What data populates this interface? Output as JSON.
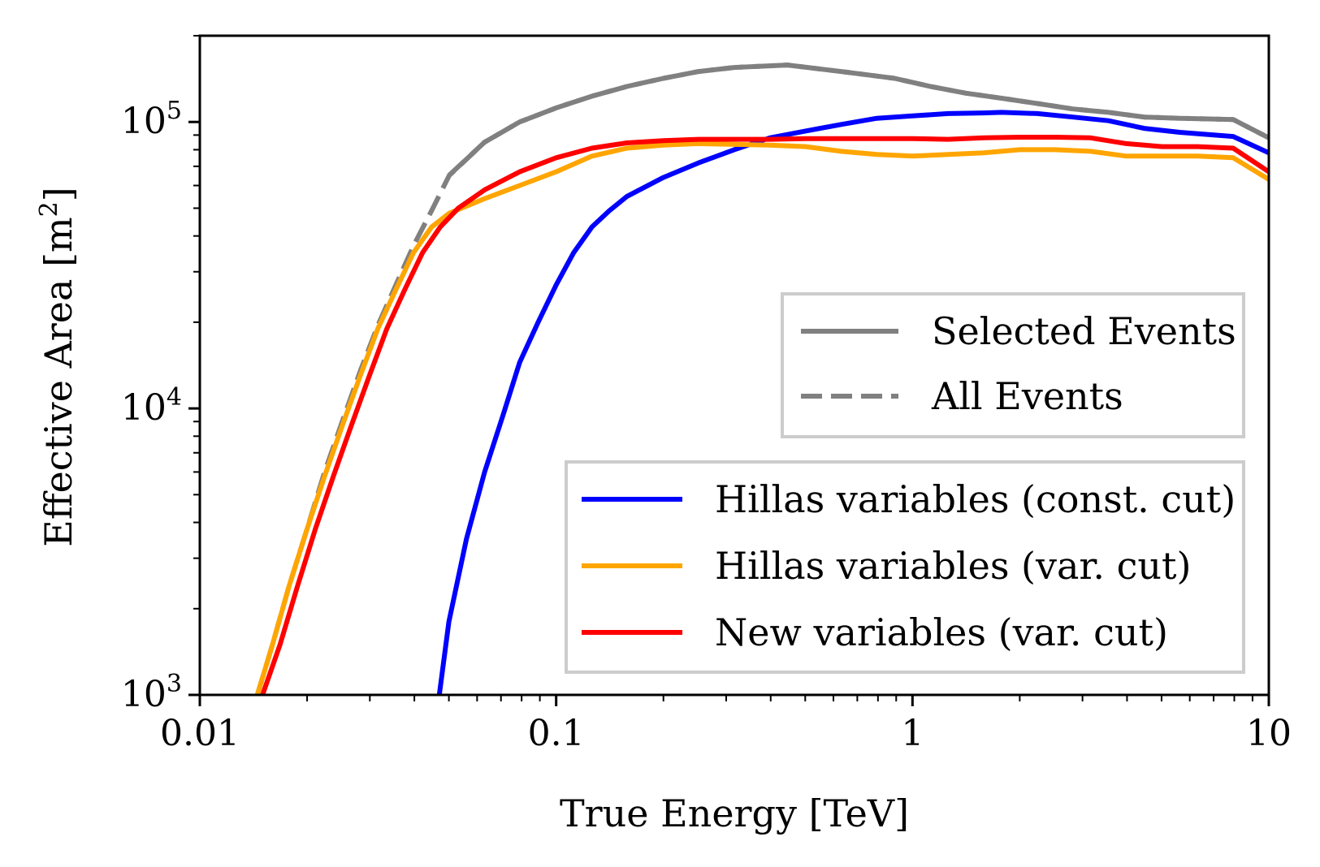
{
  "chart_data": {
    "type": "line",
    "xlabel": "True Energy [TeV]",
    "ylabel": "Effective Area [m",
    "ylabel_sup": "2",
    "ylabel_end": "]",
    "xscale": "log",
    "yscale": "log",
    "xlim": [
      0.01,
      10
    ],
    "ylim": [
      1000,
      200000
    ],
    "x_ticks": [
      {
        "value": 0.01,
        "label": "0.01"
      },
      {
        "value": 0.1,
        "label": "0.1"
      },
      {
        "value": 1,
        "label": "1"
      },
      {
        "value": 10,
        "label": "10"
      }
    ],
    "y_ticks": [
      {
        "value": 1000,
        "base": "10",
        "exp": "3"
      },
      {
        "value": 10000,
        "base": "10",
        "exp": "4"
      },
      {
        "value": 100000,
        "base": "10",
        "exp": "5"
      }
    ],
    "style_legend": [
      {
        "label": "Selected Events",
        "dash": "solid",
        "color": "#808080"
      },
      {
        "label": "All Events",
        "dash": "dashed",
        "color": "#808080"
      }
    ],
    "series": [
      {
        "name": "All Events (Hillas variables (const. cut))",
        "color": "#808080",
        "dash": "dashed",
        "legend": false,
        "x": [
          0.05,
          0.063,
          0.079,
          0.1,
          0.126,
          0.158,
          0.2,
          0.251,
          0.316,
          0.446,
          0.631,
          0.891,
          1.122,
          1.413,
          1.778,
          2.239,
          2.818,
          3.548,
          4.467,
          5.623,
          7.943,
          10
        ],
        "y": [
          65000,
          85000,
          100000,
          112000,
          123000,
          133000,
          142000,
          150000,
          155000,
          158000,
          150000,
          142000,
          133000,
          126000,
          121000,
          116000,
          111000,
          108000,
          104000,
          103000,
          102000,
          88000
        ]
      },
      {
        "name": "All Events (var. cut)",
        "color": "#808080",
        "dash": "dashed",
        "legend": false,
        "x": [
          0.0145,
          0.016,
          0.0178,
          0.02,
          0.0224,
          0.0251,
          0.0282,
          0.0316,
          0.0355,
          0.0398,
          0.0447,
          0.0501,
          0.063,
          0.079,
          0.1,
          0.126,
          0.158,
          0.2,
          0.251,
          0.316,
          0.446,
          0.631,
          0.891,
          1.122,
          1.413,
          1.778,
          2.239,
          2.818,
          3.548,
          4.467,
          5.623,
          7.943,
          10
        ],
        "y": [
          1000,
          1500,
          2400,
          3800,
          6000,
          9000,
          13500,
          19500,
          27000,
          37000,
          49000,
          65000,
          85000,
          100000,
          112000,
          123000,
          133000,
          142000,
          150000,
          155000,
          158000,
          150000,
          142000,
          133000,
          126000,
          121000,
          116000,
          111000,
          108000,
          104000,
          103000,
          102000,
          88000
        ]
      },
      {
        "name": "Hillas variables (const. cut)",
        "color": "#0000ff",
        "dash": "solid",
        "legend": true,
        "x": [
          0.047,
          0.05,
          0.056,
          0.063,
          0.071,
          0.079,
          0.089,
          0.1,
          0.112,
          0.126,
          0.141,
          0.158,
          0.2,
          0.251,
          0.316,
          0.398,
          0.501,
          0.631,
          0.794,
          1.0,
          1.259,
          1.585,
          1.778,
          2.239,
          2.818,
          3.548,
          4.467,
          5.623,
          7.943,
          10
        ],
        "y": [
          1000,
          1800,
          3500,
          6000,
          9500,
          14500,
          20000,
          27000,
          35000,
          43000,
          49000,
          55000,
          64000,
          72000,
          80000,
          88000,
          93000,
          98000,
          103000,
          105000,
          107000,
          107500,
          108000,
          107000,
          104000,
          101000,
          95000,
          92000,
          89000,
          78000
        ]
      },
      {
        "name": "Hillas variables (var. cut)",
        "color": "#ffa500",
        "dash": "solid",
        "legend": true,
        "x": [
          0.0145,
          0.016,
          0.0178,
          0.02,
          0.0224,
          0.0251,
          0.0282,
          0.0316,
          0.0355,
          0.0398,
          0.0447,
          0.0501,
          0.063,
          0.079,
          0.1,
          0.126,
          0.158,
          0.2,
          0.251,
          0.316,
          0.398,
          0.501,
          0.631,
          0.794,
          1.0,
          1.259,
          1.585,
          2.0,
          2.512,
          3.162,
          3.981,
          5.012,
          6.31,
          7.943,
          10
        ],
        "y": [
          1000,
          1500,
          2400,
          3800,
          5800,
          8700,
          13000,
          19000,
          26000,
          35000,
          43000,
          48000,
          54000,
          60000,
          67000,
          76000,
          81000,
          83000,
          84000,
          83500,
          83000,
          82000,
          79000,
          77000,
          76000,
          77000,
          78000,
          80000,
          80000,
          79000,
          76000,
          76000,
          76000,
          75000,
          63000
        ]
      },
      {
        "name": "New variables (var. cut)",
        "color": "#ff0000",
        "dash": "solid",
        "legend": true,
        "x": [
          0.015,
          0.0168,
          0.0188,
          0.0211,
          0.0237,
          0.0266,
          0.0299,
          0.0335,
          0.0376,
          0.0422,
          0.0473,
          0.0531,
          0.0631,
          0.079,
          0.1,
          0.126,
          0.158,
          0.2,
          0.251,
          0.316,
          0.398,
          0.501,
          0.631,
          0.794,
          1.0,
          1.259,
          1.585,
          2.0,
          2.512,
          3.162,
          3.981,
          5.012,
          6.31,
          7.943,
          10
        ],
        "y": [
          1000,
          1500,
          2400,
          3800,
          5800,
          8700,
          13000,
          19000,
          26000,
          35000,
          43000,
          50000,
          58000,
          67000,
          75000,
          81000,
          84500,
          86000,
          87000,
          87000,
          87000,
          87500,
          87500,
          87500,
          87500,
          87000,
          88000,
          88500,
          88500,
          88000,
          84000,
          82000,
          82000,
          81000,
          67000
        ]
      }
    ]
  }
}
